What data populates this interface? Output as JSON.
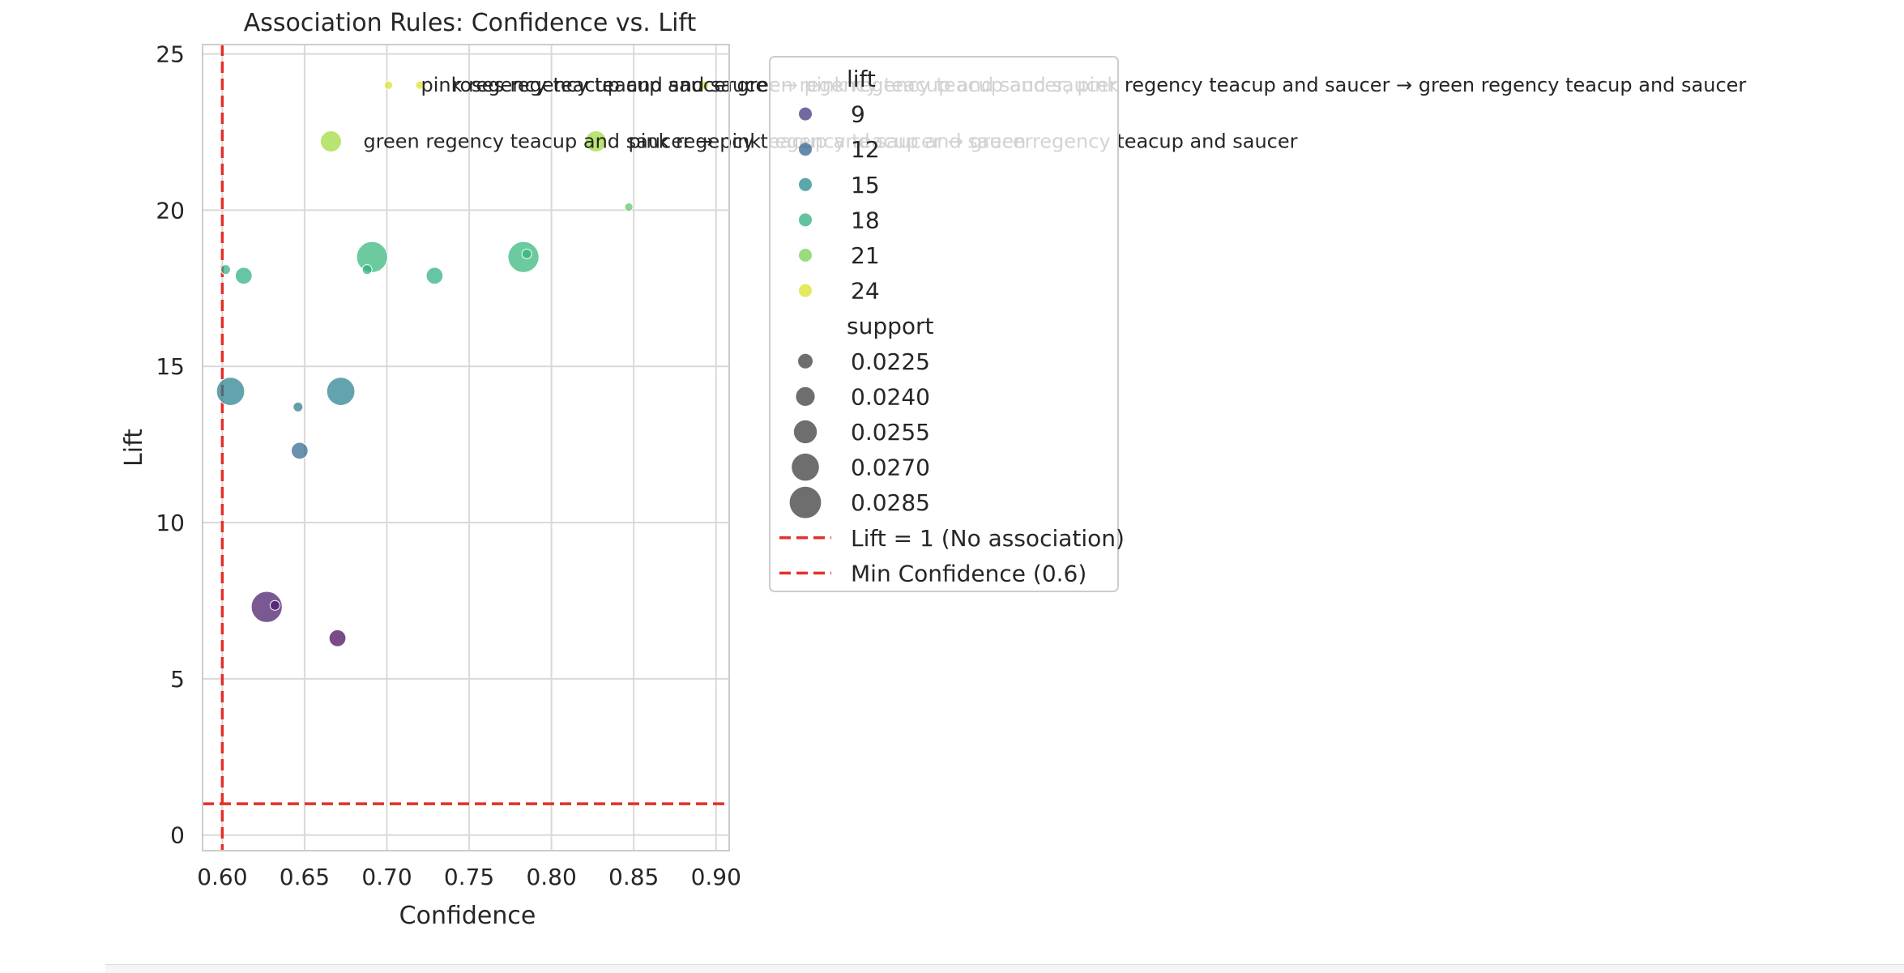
{
  "chart_data": {
    "type": "scatter",
    "title": "Association Rules: Confidence vs. Lift",
    "xlabel": "Confidence",
    "ylabel": "Lift",
    "xlim": [
      0.588,
      0.908
    ],
    "ylim": [
      -0.5,
      25.3
    ],
    "xticks": [
      0.6,
      0.65,
      0.7,
      0.75,
      0.8,
      0.85,
      0.9
    ],
    "xtick_labels": [
      "0.60",
      "0.65",
      "0.70",
      "0.75",
      "0.80",
      "0.85",
      "0.90"
    ],
    "yticks": [
      0,
      5,
      10,
      15,
      20,
      25
    ],
    "ytick_labels": [
      "0",
      "5",
      "10",
      "15",
      "20",
      "25"
    ],
    "grid": true,
    "colormap": "viridis",
    "lift_color_range": [
      6,
      25
    ],
    "support_size_range": [
      0.0215,
      0.0295
    ],
    "points": [
      {
        "confidence": 0.602,
        "lift": 18.1,
        "support": 0.0215
      },
      {
        "confidence": 0.613,
        "lift": 17.9,
        "support": 0.024
      },
      {
        "confidence": 0.605,
        "lift": 14.2,
        "support": 0.028
      },
      {
        "confidence": 0.646,
        "lift": 13.7,
        "support": 0.0215
      },
      {
        "confidence": 0.647,
        "lift": 12.3,
        "support": 0.024
      },
      {
        "confidence": 0.627,
        "lift": 7.3,
        "support": 0.029
      },
      {
        "confidence": 0.632,
        "lift": 7.35,
        "support": 0.0215
      },
      {
        "confidence": 0.67,
        "lift": 6.3,
        "support": 0.024
      },
      {
        "confidence": 0.672,
        "lift": 14.2,
        "support": 0.028
      },
      {
        "confidence": 0.691,
        "lift": 18.5,
        "support": 0.029
      },
      {
        "confidence": 0.688,
        "lift": 18.1,
        "support": 0.0215
      },
      {
        "confidence": 0.729,
        "lift": 17.9,
        "support": 0.024
      },
      {
        "confidence": 0.783,
        "lift": 18.5,
        "support": 0.029
      },
      {
        "confidence": 0.785,
        "lift": 18.6,
        "support": 0.0215
      },
      {
        "confidence": 0.847,
        "lift": 20.1,
        "support": 0.021
      },
      {
        "confidence": 0.666,
        "lift": 22.2,
        "support": 0.0255
      },
      {
        "confidence": 0.827,
        "lift": 22.2,
        "support": 0.0255
      },
      {
        "confidence": 0.701,
        "lift": 24.0,
        "support": 0.021
      },
      {
        "confidence": 0.72,
        "lift": 24.0,
        "support": 0.021
      },
      {
        "confidence": 0.893,
        "lift": 24.0,
        "support": 0.021
      }
    ],
    "annotations": [
      {
        "text": "pink regency teacup and saucer",
        "confidence": 0.701,
        "lift": 24.0
      },
      {
        "text": "roses regency teacup and saucer → pink regency teacup and saucer",
        "confidence": 0.72,
        "lift": 24.0
      },
      {
        "text": "green regency teacup and saucer, pink regency teacup and saucer → green regency teacup and saucer",
        "confidence": 0.893,
        "lift": 24.0
      },
      {
        "text": "green regency teacup and saucer → pink regency teacup and saucer",
        "confidence": 0.666,
        "lift": 22.2
      },
      {
        "text": "pink regency teacup and saucer → green regency teacup and saucer",
        "confidence": 0.827,
        "lift": 22.2
      }
    ],
    "reference_lines": [
      {
        "axis": "y",
        "value": 1,
        "label": "Lift = 1 (No association)",
        "color": "#e3302a"
      },
      {
        "axis": "x",
        "value": 0.6,
        "label": "Min Confidence (0.6)",
        "color": "#e3302a"
      }
    ],
    "legend": {
      "placement": "upper-right-outside",
      "color_title": "lift",
      "color_entries": [
        {
          "label": "9",
          "value": 9
        },
        {
          "label": "12",
          "value": 12
        },
        {
          "label": "15",
          "value": 15
        },
        {
          "label": "18",
          "value": 18
        },
        {
          "label": "21",
          "value": 21
        },
        {
          "label": "24",
          "value": 24
        }
      ],
      "size_title": "support",
      "size_entries": [
        {
          "label": "0.0225",
          "value": 0.0225
        },
        {
          "label": "0.0240",
          "value": 0.024
        },
        {
          "label": "0.0255",
          "value": 0.0255
        },
        {
          "label": "0.0270",
          "value": 0.027
        },
        {
          "label": "0.0285",
          "value": 0.0285
        }
      ],
      "line_entries": [
        {
          "label": "Lift = 1 (No association)",
          "color": "#e3302a"
        },
        {
          "label": "Min Confidence (0.6)",
          "color": "#e3302a"
        }
      ]
    }
  }
}
